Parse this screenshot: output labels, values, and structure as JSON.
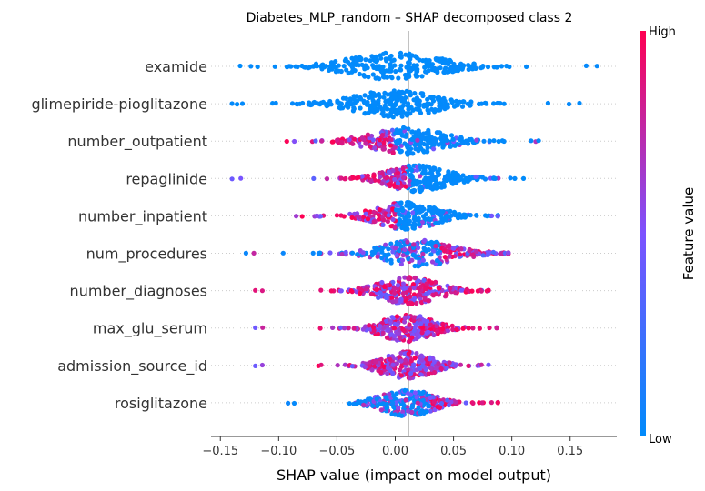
{
  "chart_data": {
    "type": "scatter",
    "subtype": "shap-beeswarm",
    "title": "Diabetes_MLP_random – SHAP decomposed class 2",
    "xlabel": "SHAP value (impact on model output)",
    "xlim": [
      -0.158,
      0.19
    ],
    "xticks": [
      -0.15,
      -0.1,
      -0.05,
      0.0,
      0.05,
      0.1,
      0.15
    ],
    "xtick_labels": [
      "−0.15",
      "−0.10",
      "−0.05",
      "0.00",
      "0.05",
      "0.10",
      "0.15"
    ],
    "colorbar": {
      "title": "Feature value",
      "high_label": "High",
      "low_label": "Low",
      "low_color": "#008bfb",
      "mid_color": "#7c52ff",
      "high_color": "#ff0052"
    },
    "features": [
      {
        "name": "examide",
        "min": -0.133,
        "max": 0.173,
        "density_peak": 0.0,
        "spread": 0.045,
        "color_mode": "low"
      },
      {
        "name": "glimepiride-pioglitazone",
        "min": -0.14,
        "max": 0.158,
        "density_peak": 0.0,
        "spread": 0.04,
        "color_mode": "low"
      },
      {
        "name": "number_outpatient",
        "min": -0.093,
        "max": 0.123,
        "density_peak": 0.01,
        "spread": 0.035,
        "color_mode": "neg-high"
      },
      {
        "name": "repaglinide",
        "min": -0.14,
        "max": 0.11,
        "density_peak": 0.02,
        "spread": 0.03,
        "color_mode": "neg-high"
      },
      {
        "name": "number_inpatient",
        "min": -0.085,
        "max": 0.088,
        "density_peak": 0.01,
        "spread": 0.03,
        "color_mode": "neg-high"
      },
      {
        "name": "num_procedures",
        "min": -0.128,
        "max": 0.097,
        "density_peak": 0.02,
        "spread": 0.035,
        "color_mode": "pos-high"
      },
      {
        "name": "number_diagnoses",
        "min": -0.12,
        "max": 0.08,
        "density_peak": 0.012,
        "spread": 0.028,
        "color_mode": "mixed-high"
      },
      {
        "name": "max_glu_serum",
        "min": -0.12,
        "max": 0.087,
        "density_peak": 0.01,
        "spread": 0.025,
        "color_mode": "mixed"
      },
      {
        "name": "admission_source_id",
        "min": -0.12,
        "max": 0.08,
        "density_peak": 0.01,
        "spread": 0.025,
        "color_mode": "mixed"
      },
      {
        "name": "rosiglitazone",
        "min": -0.092,
        "max": 0.088,
        "density_peak": 0.01,
        "spread": 0.025,
        "color_mode": "pos-high"
      }
    ]
  }
}
